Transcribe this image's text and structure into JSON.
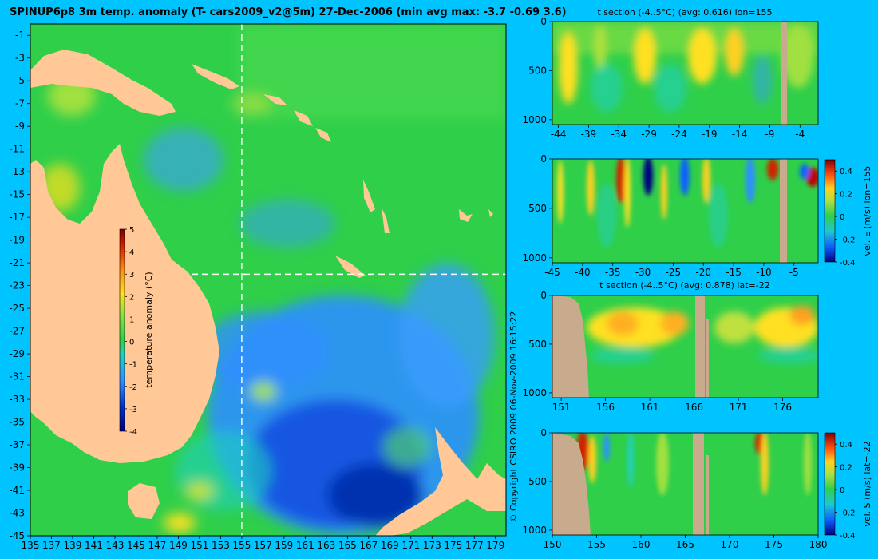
{
  "main_title": "SPINUP6p8 3m temp. anomaly (T- cars2009_v2@5m) 27-Dec-2006 (min avg max: -3.7 -0.69 3.6)",
  "copyright": "© Copyright CSIRO 2009   06-Nov-2009 16:15:22",
  "colors": {
    "background": "#00c4ff",
    "land": "#ffc896",
    "section_land": "#c8aa8c",
    "ocean_base": "#2fcf4a",
    "cool": "#2f8fff",
    "warm": "#ffe020"
  },
  "chart_data": [
    {
      "id": "map",
      "type": "heatmap",
      "title": "SPINUP6p8 3m temp. anomaly (T- cars2009_v2@5m) 27-Dec-2006 (min avg max: -3.7 -0.69 3.6)",
      "xlim": [
        135,
        180
      ],
      "ylim": [
        -45,
        0
      ],
      "x_ticks": [
        "135",
        "137",
        "139",
        "141",
        "143",
        "145",
        "147",
        "149",
        "151",
        "153",
        "155",
        "157",
        "159",
        "161",
        "163",
        "165",
        "167",
        "169",
        "171",
        "173",
        "175",
        "177",
        "179"
      ],
      "y_ticks": [
        "-1",
        "-3",
        "-5",
        "-7",
        "-9",
        "-11",
        "-13",
        "-15",
        "-17",
        "-19",
        "-21",
        "-23",
        "-25",
        "-27",
        "-29",
        "-31",
        "-33",
        "-35",
        "-37",
        "-39",
        "-41",
        "-43",
        "-45"
      ],
      "crosshair": {
        "lon": 155,
        "lat": -22
      },
      "colorbar": {
        "label": "temperature anomaly (°C)",
        "range": [
          -4,
          5
        ],
        "ticks": [
          "5",
          "4",
          "3",
          "2",
          "1",
          "0",
          "-1",
          "-2",
          "-3",
          "-4"
        ]
      }
    },
    {
      "id": "t-section-lon155",
      "type": "heatmap",
      "title": "t section (-4..5°C) (avg: 0.616) lon=155",
      "xlim": [
        -45,
        -1
      ],
      "ylim": [
        1050,
        0
      ],
      "x_ticks": [
        "-44",
        "-39",
        "-34",
        "-29",
        "-24",
        "-19",
        "-14",
        "-9",
        "-4"
      ],
      "y_ticks": [
        "0",
        "500",
        "1000"
      ]
    },
    {
      "id": "vel-e-section-lon155",
      "type": "heatmap",
      "title": "",
      "xlim": [
        -45,
        -1
      ],
      "ylim": [
        1050,
        0
      ],
      "x_ticks": [
        "-45",
        "-40",
        "-35",
        "-30",
        "-25",
        "-20",
        "-15",
        "-10",
        "-5"
      ],
      "y_ticks": [
        "0",
        "500",
        "1000"
      ],
      "colorbar": {
        "label": "vel. E (m/s) lon=155",
        "range": [
          -0.4,
          0.5
        ],
        "ticks": [
          "0.4",
          "0.2",
          "0",
          "-0.2",
          "-0.4"
        ]
      }
    },
    {
      "id": "t-section-lat-22",
      "type": "heatmap",
      "title": "t section (-4..5°C) (avg: 0.878) lat=-22",
      "xlim": [
        150,
        180
      ],
      "ylim": [
        1050,
        0
      ],
      "x_ticks": [
        "151",
        "156",
        "161",
        "166",
        "171",
        "176"
      ],
      "y_ticks": [
        "0",
        "500",
        "1000"
      ]
    },
    {
      "id": "vel-s-section-lat-22",
      "type": "heatmap",
      "title": "",
      "xlim": [
        150,
        180
      ],
      "ylim": [
        1050,
        0
      ],
      "x_ticks": [
        "150",
        "155",
        "160",
        "165",
        "170",
        "175",
        "180"
      ],
      "y_ticks": [
        "0",
        "500",
        "1000"
      ],
      "colorbar": {
        "label": "vel. S (m/s) lat=-22",
        "range": [
          -0.4,
          0.5
        ],
        "ticks": [
          "0.4",
          "0.2",
          "0",
          "-0.2",
          "-0.4"
        ]
      }
    }
  ]
}
